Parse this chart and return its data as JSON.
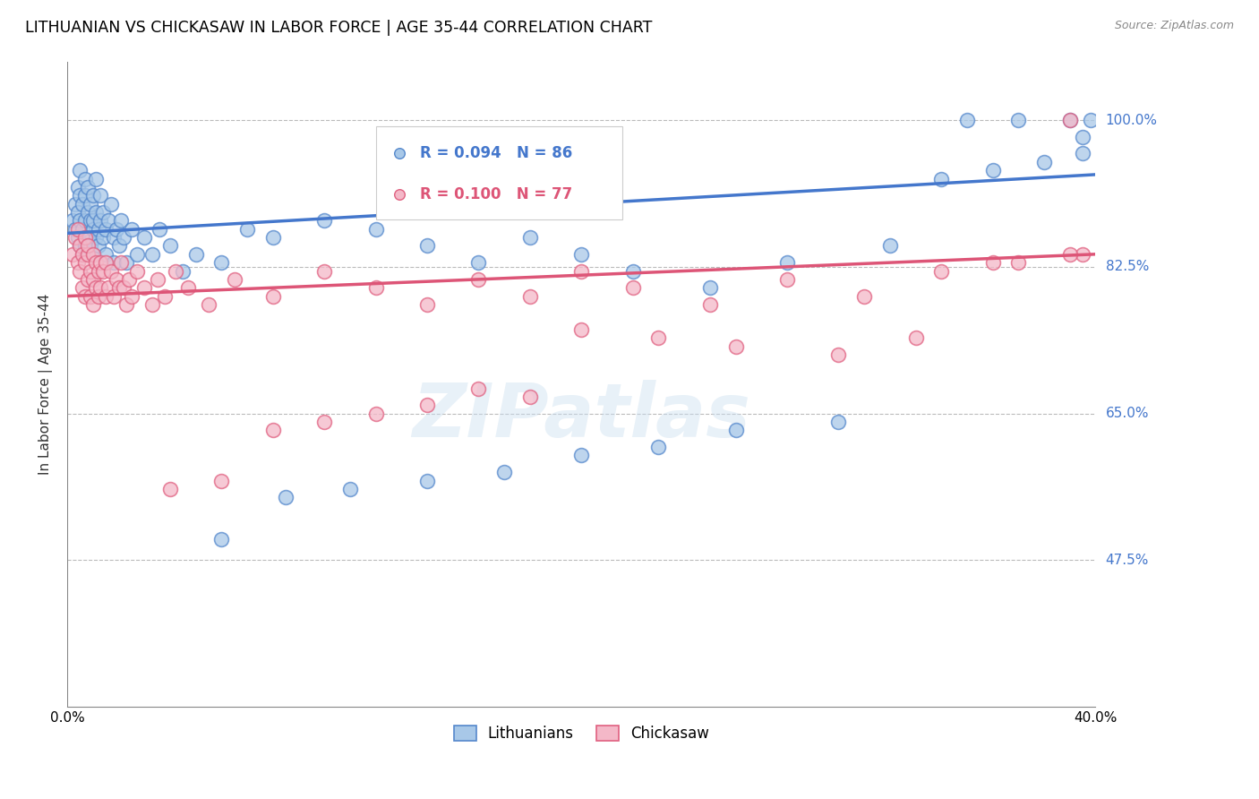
{
  "title": "LITHUANIAN VS CHICKASAW IN LABOR FORCE | AGE 35-44 CORRELATION CHART",
  "source": "Source: ZipAtlas.com",
  "ylabel": "In Labor Force | Age 35-44",
  "ytick_labels": [
    "100.0%",
    "82.5%",
    "65.0%",
    "47.5%"
  ],
  "ytick_values": [
    1.0,
    0.825,
    0.65,
    0.475
  ],
  "xlim": [
    0.0,
    0.4
  ],
  "ylim": [
    0.3,
    1.07
  ],
  "blue_color": "#a8c8e8",
  "pink_color": "#f4b8c8",
  "blue_edge_color": "#5588cc",
  "pink_edge_color": "#e06080",
  "blue_line_color": "#4477cc",
  "pink_line_color": "#dd5577",
  "legend_R_blue": "R = 0.094",
  "legend_N_blue": "N = 86",
  "legend_R_pink": "R = 0.100",
  "legend_N_pink": "N = 77",
  "legend_label_blue": "Lithuanians",
  "legend_label_pink": "Chickasaw",
  "watermark": "ZIPatlas",
  "blue_line_x0": 0.0,
  "blue_line_x1": 0.4,
  "blue_line_y0": 0.865,
  "blue_line_y1": 0.935,
  "pink_line_x0": 0.0,
  "pink_line_x1": 0.4,
  "pink_line_y0": 0.79,
  "pink_line_y1": 0.84,
  "blue_scatter_x": [
    0.002,
    0.003,
    0.003,
    0.004,
    0.004,
    0.004,
    0.005,
    0.005,
    0.005,
    0.005,
    0.006,
    0.006,
    0.006,
    0.007,
    0.007,
    0.007,
    0.007,
    0.008,
    0.008,
    0.008,
    0.009,
    0.009,
    0.009,
    0.01,
    0.01,
    0.01,
    0.01,
    0.011,
    0.011,
    0.011,
    0.012,
    0.012,
    0.013,
    0.013,
    0.014,
    0.014,
    0.015,
    0.015,
    0.016,
    0.017,
    0.018,
    0.018,
    0.019,
    0.02,
    0.021,
    0.022,
    0.023,
    0.025,
    0.027,
    0.03,
    0.033,
    0.036,
    0.04,
    0.045,
    0.05,
    0.06,
    0.07,
    0.08,
    0.1,
    0.12,
    0.14,
    0.16,
    0.18,
    0.2,
    0.22,
    0.25,
    0.28,
    0.32,
    0.35,
    0.37,
    0.39,
    0.395,
    0.398,
    0.395,
    0.38,
    0.36,
    0.34,
    0.3,
    0.26,
    0.23,
    0.2,
    0.17,
    0.14,
    0.11,
    0.085,
    0.06
  ],
  "blue_scatter_y": [
    0.88,
    0.9,
    0.87,
    0.92,
    0.89,
    0.86,
    0.91,
    0.88,
    0.85,
    0.94,
    0.87,
    0.9,
    0.84,
    0.91,
    0.88,
    0.85,
    0.93,
    0.89,
    0.86,
    0.92,
    0.88,
    0.85,
    0.9,
    0.87,
    0.84,
    0.91,
    0.88,
    0.86,
    0.89,
    0.93,
    0.87,
    0.85,
    0.88,
    0.91,
    0.86,
    0.89,
    0.87,
    0.84,
    0.88,
    0.9,
    0.86,
    0.83,
    0.87,
    0.85,
    0.88,
    0.86,
    0.83,
    0.87,
    0.84,
    0.86,
    0.84,
    0.87,
    0.85,
    0.82,
    0.84,
    0.83,
    0.87,
    0.86,
    0.88,
    0.87,
    0.85,
    0.83,
    0.86,
    0.84,
    0.82,
    0.8,
    0.83,
    0.85,
    1.0,
    1.0,
    1.0,
    0.98,
    1.0,
    0.96,
    0.95,
    0.94,
    0.93,
    0.64,
    0.63,
    0.61,
    0.6,
    0.58,
    0.57,
    0.56,
    0.55,
    0.5
  ],
  "pink_scatter_x": [
    0.002,
    0.003,
    0.004,
    0.004,
    0.005,
    0.005,
    0.006,
    0.006,
    0.007,
    0.007,
    0.007,
    0.008,
    0.008,
    0.008,
    0.009,
    0.009,
    0.01,
    0.01,
    0.01,
    0.011,
    0.011,
    0.012,
    0.012,
    0.013,
    0.013,
    0.014,
    0.015,
    0.015,
    0.016,
    0.017,
    0.018,
    0.019,
    0.02,
    0.021,
    0.022,
    0.023,
    0.024,
    0.025,
    0.027,
    0.03,
    0.033,
    0.035,
    0.038,
    0.042,
    0.047,
    0.055,
    0.065,
    0.08,
    0.1,
    0.12,
    0.14,
    0.16,
    0.18,
    0.2,
    0.22,
    0.25,
    0.28,
    0.31,
    0.34,
    0.37,
    0.39,
    0.395,
    0.2,
    0.23,
    0.26,
    0.3,
    0.33,
    0.36,
    0.39,
    0.16,
    0.18,
    0.14,
    0.12,
    0.1,
    0.08,
    0.06,
    0.04
  ],
  "pink_scatter_y": [
    0.84,
    0.86,
    0.83,
    0.87,
    0.82,
    0.85,
    0.84,
    0.8,
    0.83,
    0.86,
    0.79,
    0.84,
    0.81,
    0.85,
    0.82,
    0.79,
    0.84,
    0.81,
    0.78,
    0.83,
    0.8,
    0.82,
    0.79,
    0.83,
    0.8,
    0.82,
    0.79,
    0.83,
    0.8,
    0.82,
    0.79,
    0.81,
    0.8,
    0.83,
    0.8,
    0.78,
    0.81,
    0.79,
    0.82,
    0.8,
    0.78,
    0.81,
    0.79,
    0.82,
    0.8,
    0.78,
    0.81,
    0.79,
    0.82,
    0.8,
    0.78,
    0.81,
    0.79,
    0.82,
    0.8,
    0.78,
    0.81,
    0.79,
    0.82,
    0.83,
    1.0,
    0.84,
    0.75,
    0.74,
    0.73,
    0.72,
    0.74,
    0.83,
    0.84,
    0.68,
    0.67,
    0.66,
    0.65,
    0.64,
    0.63,
    0.57,
    0.56
  ]
}
